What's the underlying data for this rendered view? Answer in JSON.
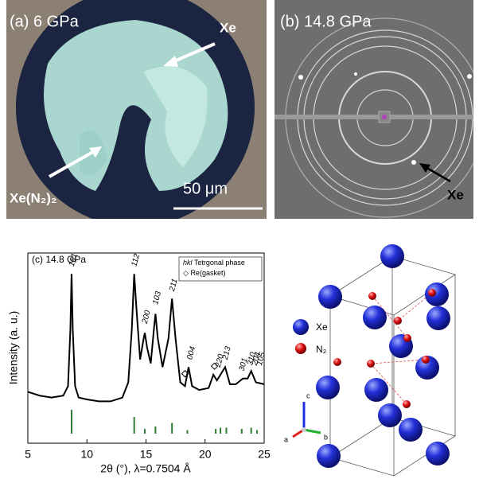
{
  "panel_a": {
    "label": "(a) 6 GPa",
    "arrow_label_1": "Xe",
    "arrow_label_2": "Xe(N₂)₂",
    "scale_bar": "50 μm"
  },
  "panel_b": {
    "label": "(b) 14.8 GPa",
    "arrow_label": "Xe"
  },
  "chart_data": {
    "type": "line",
    "title": "(c) 14.8 GPa",
    "x_label": "2θ (°), λ=0.7504 Å",
    "y_label": "Intensity (a. u.)",
    "xlim": [
      5,
      25
    ],
    "xticks": [
      5,
      10,
      15,
      20,
      25
    ],
    "ylim": [
      0,
      100
    ],
    "x": [
      5,
      6,
      7,
      8,
      8.4,
      8.6,
      8.7,
      8.8,
      9.0,
      9.3,
      10,
      11,
      12,
      13,
      13.5,
      13.8,
      14.0,
      14.2,
      14.5,
      14.8,
      14.9,
      15.1,
      15.4,
      15.7,
      15.8,
      16.0,
      16.4,
      16.9,
      17.2,
      17.5,
      17.9,
      18.3,
      18.6,
      18.9,
      19.5,
      20.3,
      20.7,
      21.0,
      21.3,
      21.7,
      22.1,
      22.6,
      23.2,
      23.6,
      23.9,
      24.3,
      25
    ],
    "series": [
      {
        "color": "#000000",
        "values": [
          27,
          25,
          24,
          25,
          30,
          60,
          89,
          60,
          30,
          24,
          23,
          22,
          22,
          24,
          32,
          60,
          89,
          70,
          44,
          55,
          58,
          50,
          42,
          62,
          68,
          55,
          40,
          55,
          76,
          55,
          32,
          30,
          40,
          30,
          28,
          29,
          36,
          33,
          36,
          40,
          31,
          31,
          34,
          34,
          38,
          32,
          31
        ]
      }
    ],
    "peak_labels": {
      "labels": [
        "101",
        "112",
        "200",
        "103",
        "211",
        "004",
        "220",
        "213",
        "301",
        "310",
        "204",
        "105"
      ],
      "x": [
        8.7,
        14.0,
        14.9,
        15.8,
        17.2,
        18.7,
        21.1,
        21.7,
        23.1,
        23.8,
        24.2,
        24.6
      ],
      "y": [
        93,
        93,
        63,
        73,
        80,
        44,
        40,
        44,
        38,
        41,
        41,
        41
      ]
    },
    "gasket_peaks": {
      "x": [
        18.3,
        20.8
      ],
      "values": [
        34,
        38
      ]
    },
    "reflections": {
      "color": "#2e7d32",
      "x": [
        8.7,
        14.0,
        14.9,
        15.8,
        17.2,
        18.5,
        20.9,
        21.3,
        21.8,
        23.1,
        23.9,
        24.4
      ],
      "values": [
        100,
        70,
        20,
        30,
        45,
        15,
        20,
        25,
        25,
        20,
        25,
        15
      ]
    },
    "legend": [
      {
        "symbol": "hkl",
        "label": "Tetrgonal phase"
      },
      {
        "symbol": "◇",
        "label": "Re(gasket)"
      }
    ]
  },
  "panel_d": {
    "legend": [
      "Xe",
      "N₂"
    ],
    "axes": [
      "c",
      "a",
      "b"
    ]
  }
}
